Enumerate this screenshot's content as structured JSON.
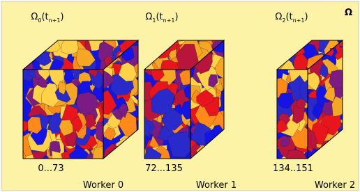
{
  "labels": [
    {
      "parts": [
        "Ω",
        "0",
        "(t",
        "n+1",
        ")"
      ]
    },
    {
      "parts": [
        "Ω",
        "1",
        "(t",
        "n+1",
        ")"
      ]
    },
    {
      "parts": [
        "Ω",
        "2",
        "(t",
        "n+1",
        ")"
      ]
    }
  ],
  "corner_label": "Ω",
  "workers": [
    {
      "range": "0...73",
      "name": "Worker 0"
    },
    {
      "range": "72...135",
      "name": "Worker 1"
    },
    {
      "range": "134..151",
      "name": "Worker 2"
    }
  ]
}
